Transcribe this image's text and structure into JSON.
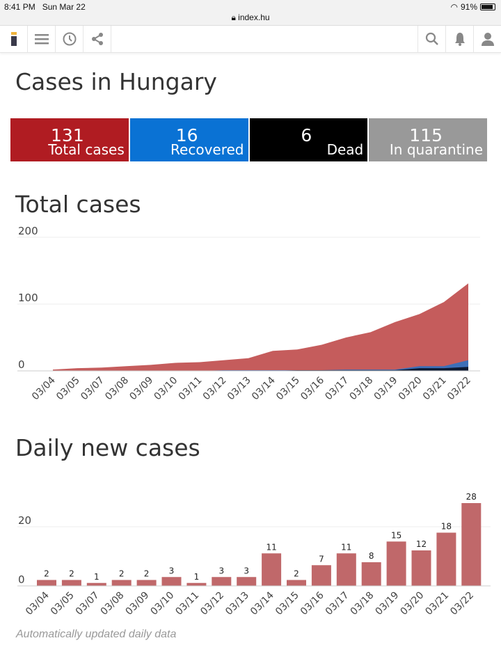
{
  "status": {
    "time": "8:41 PM",
    "date": "Sun Mar 22",
    "battery": "91%",
    "url": "index.hu"
  },
  "page": {
    "title": "Cases in Hungary"
  },
  "stats": [
    {
      "value": "131",
      "label": "Total cases",
      "color": "#b01c22"
    },
    {
      "value": "16",
      "label": "Recovered",
      "color": "#0a72d4"
    },
    {
      "value": "6",
      "label": "Dead",
      "color": "#000000"
    },
    {
      "value": "115",
      "label": "In quarantine",
      "color": "#999999"
    }
  ],
  "total_title": "Total cases",
  "daily_title": "Daily new cases",
  "note": "Automatically updated daily data",
  "chart_data": [
    {
      "type": "area",
      "title": "Total cases",
      "yticks": [
        "0",
        "100",
        "200"
      ],
      "ylim": [
        0,
        200
      ],
      "categories": [
        "03/04",
        "03/05",
        "03/07",
        "03/08",
        "03/09",
        "03/10",
        "03/11",
        "03/12",
        "03/13",
        "03/14",
        "03/15",
        "03/16",
        "03/17",
        "03/18",
        "03/19",
        "03/20",
        "03/21",
        "03/22"
      ],
      "series": [
        {
          "name": "Total",
          "color": "#c55c5c",
          "values": [
            2,
            4,
            5,
            7,
            9,
            12,
            13,
            16,
            19,
            30,
            32,
            39,
            50,
            58,
            73,
            85,
            103,
            131
          ]
        },
        {
          "name": "Recovered",
          "color": "#3d6fb8",
          "values": [
            0,
            0,
            0,
            0,
            0,
            0,
            0,
            1,
            1,
            1,
            1,
            1,
            2,
            2,
            2,
            7,
            7,
            16
          ]
        },
        {
          "name": "Dead",
          "color": "#0d1a33",
          "values": [
            0,
            0,
            0,
            0,
            0,
            0,
            0,
            0,
            0,
            0,
            1,
            1,
            1,
            1,
            1,
            4,
            4,
            6
          ]
        }
      ]
    },
    {
      "type": "bar",
      "title": "Daily new cases",
      "yticks": [
        "0",
        "20"
      ],
      "ylim": [
        0,
        30
      ],
      "color": "#c0686a",
      "categories": [
        "03/04",
        "03/05",
        "03/07",
        "03/08",
        "03/09",
        "03/10",
        "03/11",
        "03/12",
        "03/13",
        "03/14",
        "03/15",
        "03/16",
        "03/17",
        "03/18",
        "03/19",
        "03/20",
        "03/21",
        "03/22"
      ],
      "values": [
        2,
        2,
        1,
        2,
        2,
        3,
        1,
        3,
        3,
        11,
        2,
        7,
        11,
        8,
        15,
        12,
        18,
        28
      ]
    }
  ]
}
